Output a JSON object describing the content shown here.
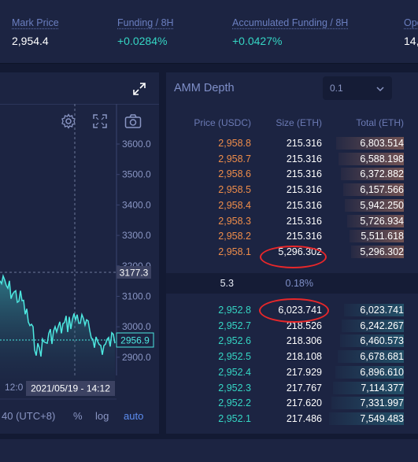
{
  "stats": [
    {
      "label": "Mark Price",
      "value": "2,954.4",
      "color": "white"
    },
    {
      "label": "Funding / 8H",
      "value": "+0.0284%",
      "color": "green"
    },
    {
      "label": "Accumulated Funding / 8H",
      "value": "+0.0427%",
      "color": "green"
    },
    {
      "label": "Ope",
      "value": "14,",
      "color": "white"
    }
  ],
  "chart": {
    "y_ticks": [
      "3600.0",
      "3500.0",
      "3400.0",
      "3300.0",
      "3200.0",
      "3100.0",
      "3000.0",
      "2900.0"
    ],
    "crosshair_price": "3177.3",
    "last_price": "2956.9",
    "time_label": "12:0",
    "crosshair_time": "2021/05/19 - 14:12",
    "footer": {
      "timezone": "40 (UTC+8)",
      "percent": "%",
      "log": "log",
      "auto": "auto"
    },
    "line_color": "#4de8e0"
  },
  "depth": {
    "title": "AMM Depth",
    "precision": "0.1",
    "headers": {
      "price": "Price (USDC)",
      "size": "Size (ETH)",
      "total": "Total (ETH)"
    },
    "asks": [
      {
        "price": "2,958.8",
        "size": "215.316",
        "total": "6,803.514"
      },
      {
        "price": "2,958.7",
        "size": "215.316",
        "total": "6,588.198"
      },
      {
        "price": "2,958.6",
        "size": "215.316",
        "total": "6,372.882"
      },
      {
        "price": "2,958.5",
        "size": "215.316",
        "total": "6,157.566"
      },
      {
        "price": "2,958.4",
        "size": "215.316",
        "total": "5,942.250"
      },
      {
        "price": "2,958.3",
        "size": "215.316",
        "total": "5,726.934"
      },
      {
        "price": "2,958.2",
        "size": "215.316",
        "total": "5,511.618"
      },
      {
        "price": "2,958.1",
        "size": "5,296.302",
        "total": "5,296.302"
      }
    ],
    "spread": {
      "value": "5.3",
      "percent": "0.18%"
    },
    "bids": [
      {
        "price": "2,952.8",
        "size": "6,023.741",
        "total": "6,023.741"
      },
      {
        "price": "2,952.7",
        "size": "218.526",
        "total": "6,242.267"
      },
      {
        "price": "2,952.6",
        "size": "218.306",
        "total": "6,460.573"
      },
      {
        "price": "2,952.5",
        "size": "218.108",
        "total": "6,678.681"
      },
      {
        "price": "2,952.4",
        "size": "217.929",
        "total": "6,896.610"
      },
      {
        "price": "2,952.3",
        "size": "217.767",
        "total": "7,114.377"
      },
      {
        "price": "2,952.2",
        "size": "217.620",
        "total": "7,331.997"
      },
      {
        "price": "2,952.1",
        "size": "217.486",
        "total": "7,549.483"
      }
    ],
    "highlight_color": "#e8272a"
  }
}
